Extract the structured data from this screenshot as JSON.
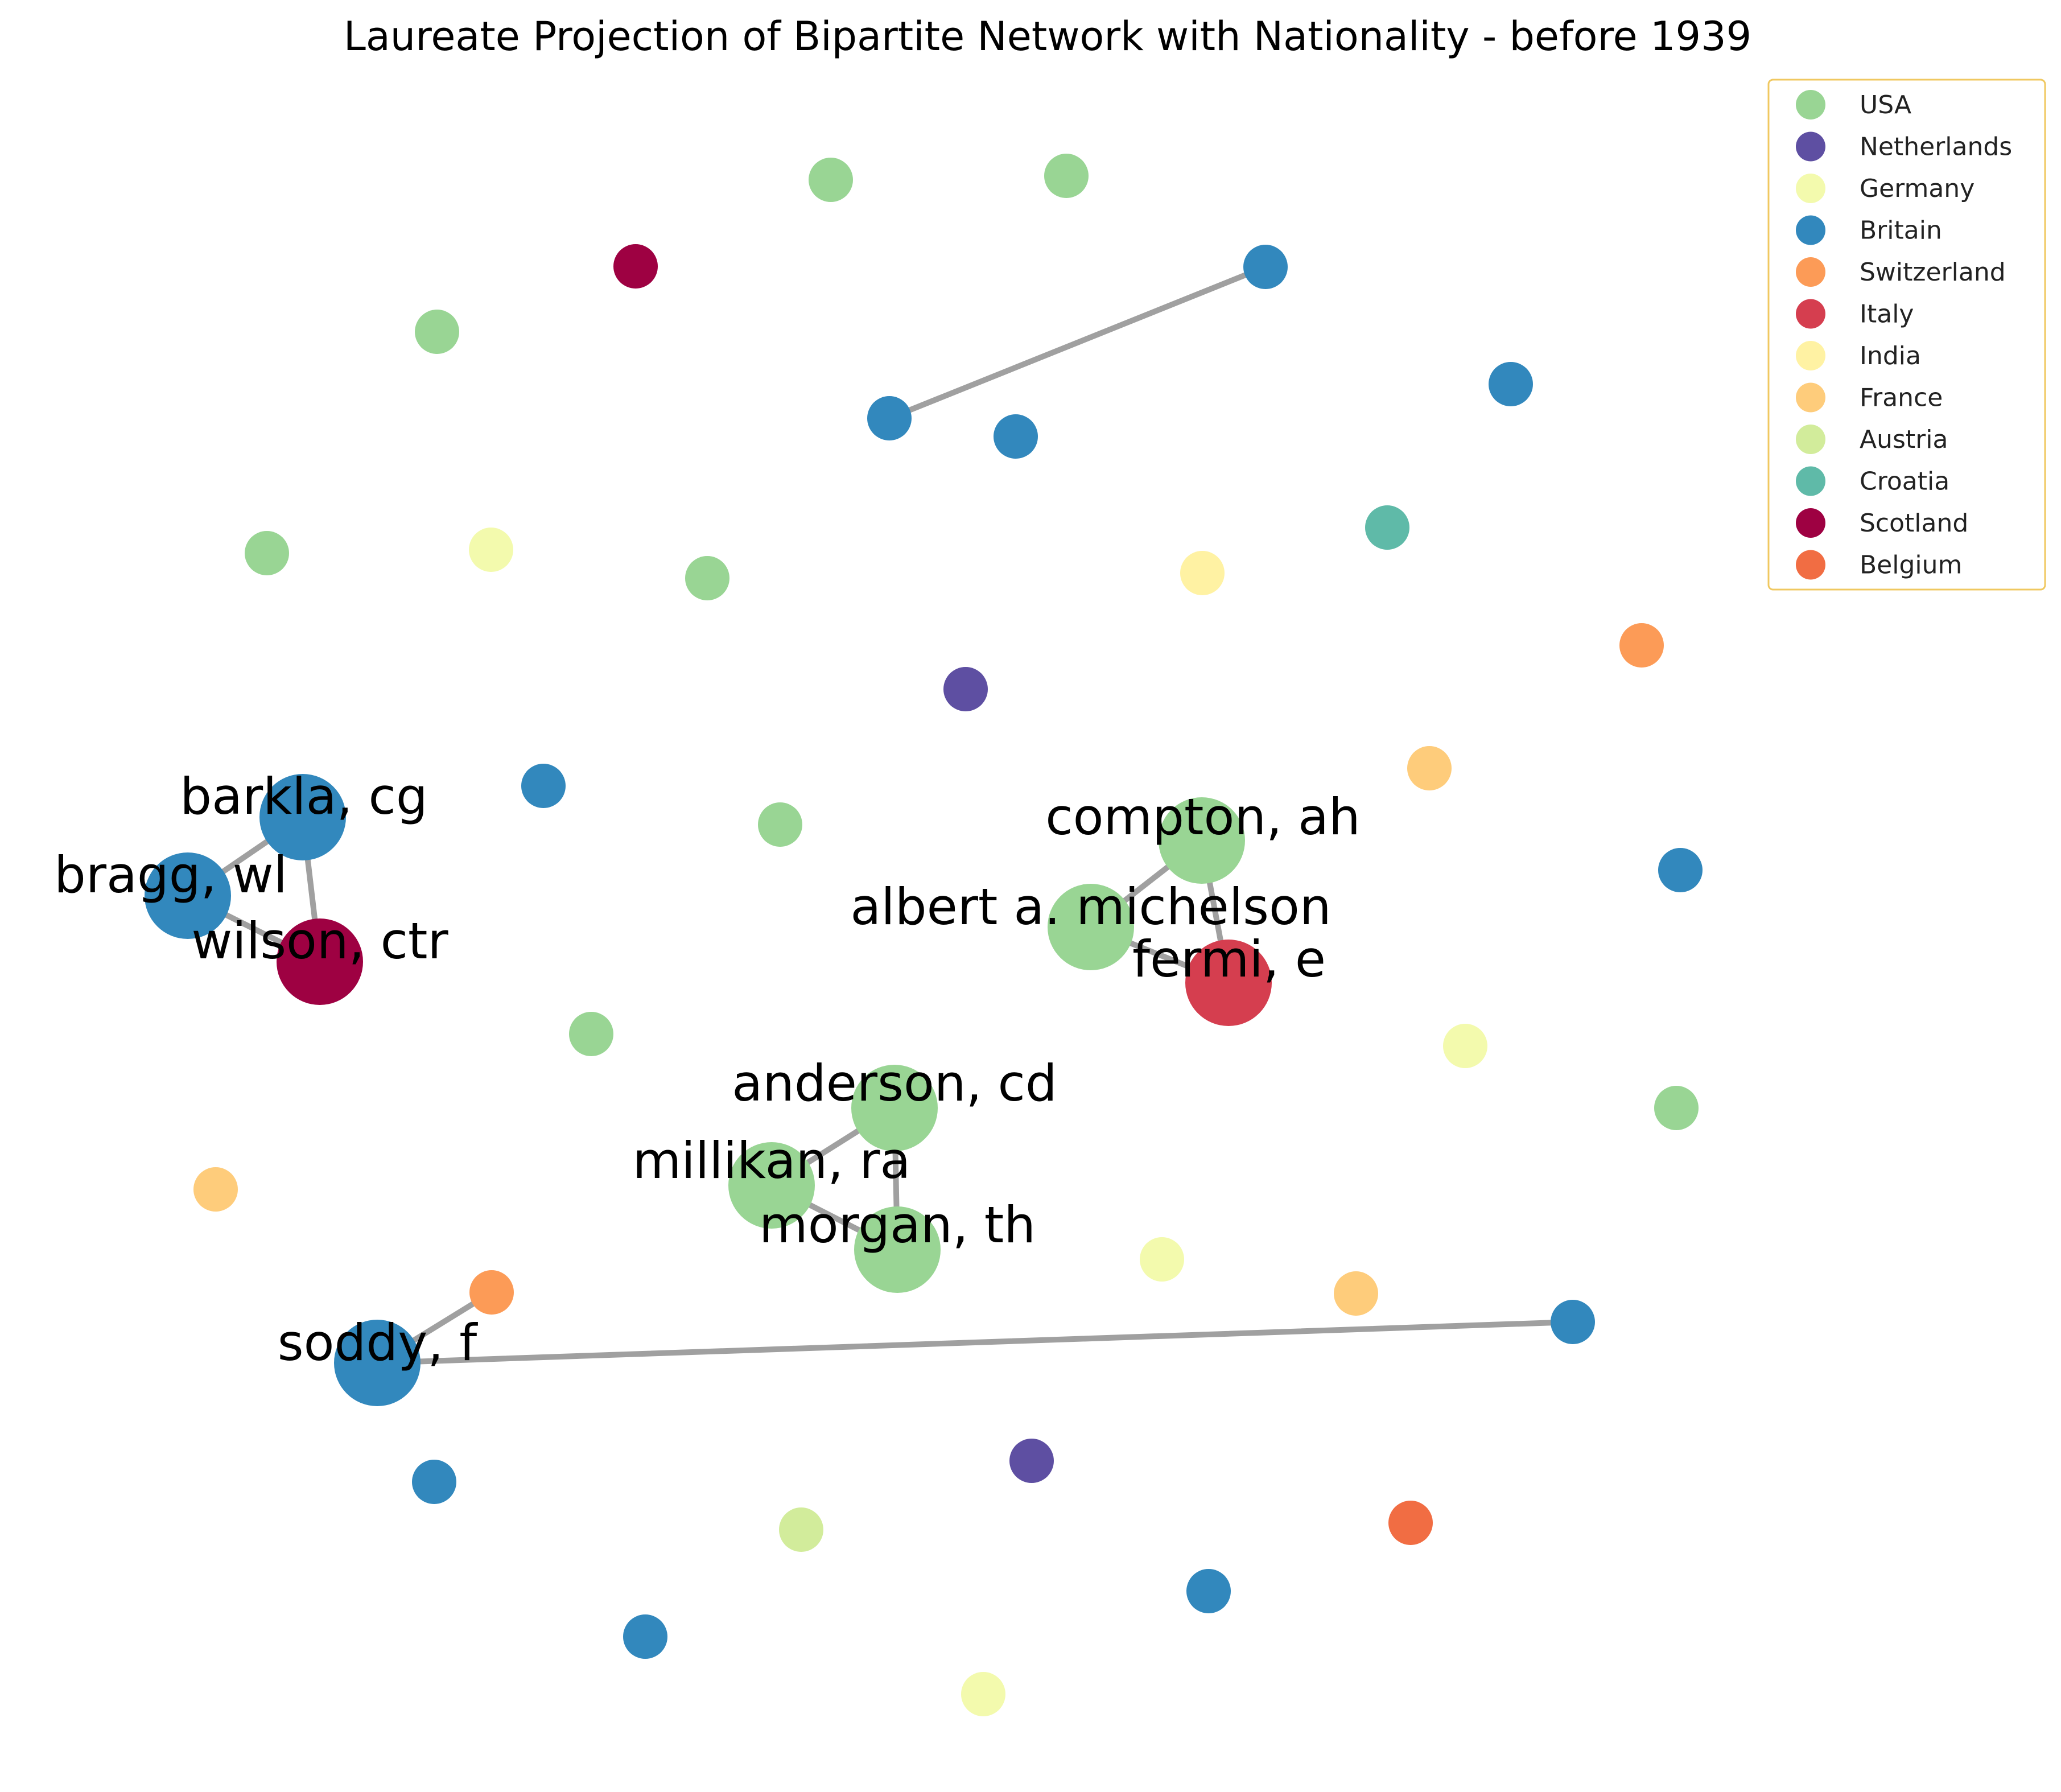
{
  "chart_data": {
    "type": "network",
    "title": "Laureate Projection of Bipartite Network with Nationality - before 1939",
    "legend": {
      "placement": "top-right",
      "entries": [
        {
          "label": "USA",
          "color": "#99d594"
        },
        {
          "label": "Netherlands",
          "color": "#5e4fa2"
        },
        {
          "label": "Germany",
          "color": "#f3faad"
        },
        {
          "label": "Britain",
          "color": "#3288bd"
        },
        {
          "label": "Switzerland",
          "color": "#fc9b57"
        },
        {
          "label": "Italy",
          "color": "#d53e4f"
        },
        {
          "label": "India",
          "color": "#fff2a3"
        },
        {
          "label": "France",
          "color": "#fecc7b"
        },
        {
          "label": "Austria",
          "color": "#d2ec9b"
        },
        {
          "label": "Croatia",
          "color": "#5fbaa8"
        },
        {
          "label": "Scotland",
          "color": "#9e0142"
        },
        {
          "label": "Belgium",
          "color": "#f16d43"
        }
      ]
    },
    "nodes": [
      {
        "id": "barkla",
        "label": "barkla, cg",
        "nationality": "Britain"
      },
      {
        "id": "bragg",
        "label": "bragg, wl",
        "nationality": "Britain"
      },
      {
        "id": "wilson",
        "label": "wilson, ctr",
        "nationality": "Scotland"
      },
      {
        "id": "compton",
        "label": "compton, ah",
        "nationality": "USA"
      },
      {
        "id": "michelson",
        "label": "albert a. michelson",
        "nationality": "USA"
      },
      {
        "id": "fermi",
        "label": "fermi, e",
        "nationality": "Italy"
      },
      {
        "id": "anderson",
        "label": "anderson, cd",
        "nationality": "USA"
      },
      {
        "id": "millikan",
        "label": "millikan, ra",
        "nationality": "USA"
      },
      {
        "id": "morgan",
        "label": "morgan, th",
        "nationality": "USA"
      },
      {
        "id": "soddy",
        "label": "soddy, f",
        "nationality": "Britain"
      },
      {
        "id": "n1",
        "label": "",
        "nationality": "USA"
      },
      {
        "id": "n2",
        "label": "",
        "nationality": "USA"
      },
      {
        "id": "n3",
        "label": "",
        "nationality": "Scotland"
      },
      {
        "id": "n4",
        "label": "",
        "nationality": "USA"
      },
      {
        "id": "n5",
        "label": "",
        "nationality": "Britain"
      },
      {
        "id": "n6",
        "label": "",
        "nationality": "Britain"
      },
      {
        "id": "n7",
        "label": "",
        "nationality": "Britain"
      },
      {
        "id": "n8",
        "label": "",
        "nationality": "Britain"
      },
      {
        "id": "n9",
        "label": "",
        "nationality": "USA"
      },
      {
        "id": "n10",
        "label": "",
        "nationality": "Germany"
      },
      {
        "id": "n11",
        "label": "",
        "nationality": "USA"
      },
      {
        "id": "n12",
        "label": "",
        "nationality": "India"
      },
      {
        "id": "n13",
        "label": "",
        "nationality": "Croatia"
      },
      {
        "id": "n14",
        "label": "",
        "nationality": "Switzerland"
      },
      {
        "id": "n15",
        "label": "",
        "nationality": "Netherlands"
      },
      {
        "id": "n16",
        "label": "",
        "nationality": "Britain"
      },
      {
        "id": "n17",
        "label": "",
        "nationality": "USA"
      },
      {
        "id": "n18",
        "label": "",
        "nationality": "France"
      },
      {
        "id": "n19",
        "label": "",
        "nationality": "Britain"
      },
      {
        "id": "n20",
        "label": "",
        "nationality": "USA"
      },
      {
        "id": "n21",
        "label": "",
        "nationality": "Germany"
      },
      {
        "id": "n22",
        "label": "",
        "nationality": "USA"
      },
      {
        "id": "n23",
        "label": "",
        "nationality": "France"
      },
      {
        "id": "n24",
        "label": "",
        "nationality": "Switzerland"
      },
      {
        "id": "n25",
        "label": "",
        "nationality": "Germany"
      },
      {
        "id": "n26",
        "label": "",
        "nationality": "France"
      },
      {
        "id": "n27",
        "label": "",
        "nationality": "Britain"
      },
      {
        "id": "n28",
        "label": "",
        "nationality": "Britain"
      },
      {
        "id": "n29",
        "label": "",
        "nationality": "Netherlands"
      },
      {
        "id": "n30",
        "label": "",
        "nationality": "Austria"
      },
      {
        "id": "n31",
        "label": "",
        "nationality": "Belgium"
      },
      {
        "id": "n32",
        "label": "",
        "nationality": "Britain"
      },
      {
        "id": "n33",
        "label": "",
        "nationality": "Britain"
      },
      {
        "id": "n34",
        "label": "",
        "nationality": "Germany"
      }
    ],
    "edges": [
      [
        "barkla",
        "bragg"
      ],
      [
        "barkla",
        "wilson"
      ],
      [
        "bragg",
        "wilson"
      ],
      [
        "compton",
        "michelson"
      ],
      [
        "compton",
        "fermi"
      ],
      [
        "michelson",
        "fermi"
      ],
      [
        "anderson",
        "millikan"
      ],
      [
        "anderson",
        "morgan"
      ],
      [
        "millikan",
        "morgan"
      ],
      [
        "soddy",
        "n24"
      ],
      [
        "soddy",
        "n27"
      ],
      [
        "n5",
        "n6"
      ]
    ]
  }
}
